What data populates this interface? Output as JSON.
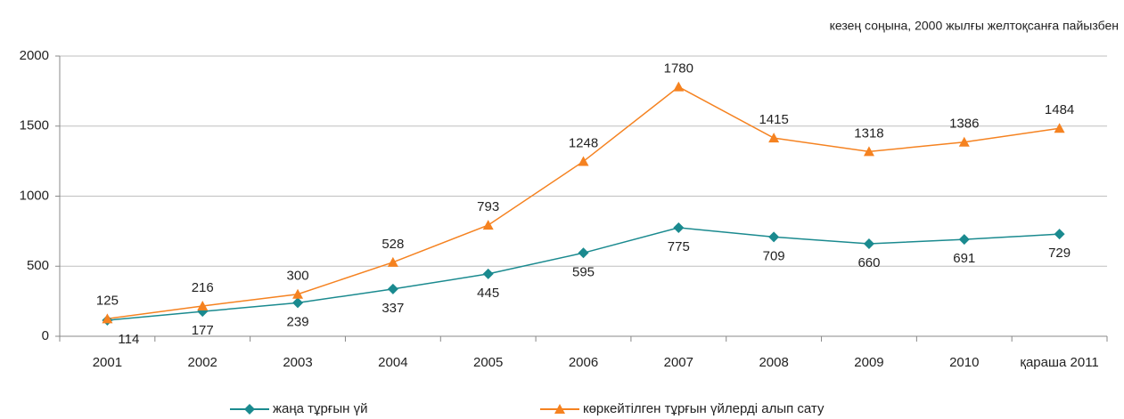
{
  "chart_data": {
    "type": "line",
    "subtitle": "кезең соңына, 2000 жылғы желтоқсанға пайызбен",
    "categories": [
      "2001",
      "2002",
      "2003",
      "2004",
      "2005",
      "2006",
      "2007",
      "2008",
      "2009",
      "2010",
      "қараша 2011"
    ],
    "series": [
      {
        "name": "жаңа тұрғын үй",
        "color": "#1a8a8f",
        "marker": "diamond",
        "values": [
          114,
          177,
          239,
          337,
          445,
          595,
          775,
          709,
          660,
          691,
          729
        ]
      },
      {
        "name": "көркейтілген тұрғын үйлерді алып сату",
        "color": "#f58220",
        "marker": "triangle",
        "values": [
          125,
          216,
          300,
          528,
          793,
          1248,
          1780,
          1415,
          1318,
          1386,
          1484
        ]
      }
    ],
    "ylim": [
      0,
      2000
    ],
    "yticks": [
      0,
      500,
      1000,
      1500,
      2000
    ],
    "grid": true,
    "legend": "bottom"
  }
}
